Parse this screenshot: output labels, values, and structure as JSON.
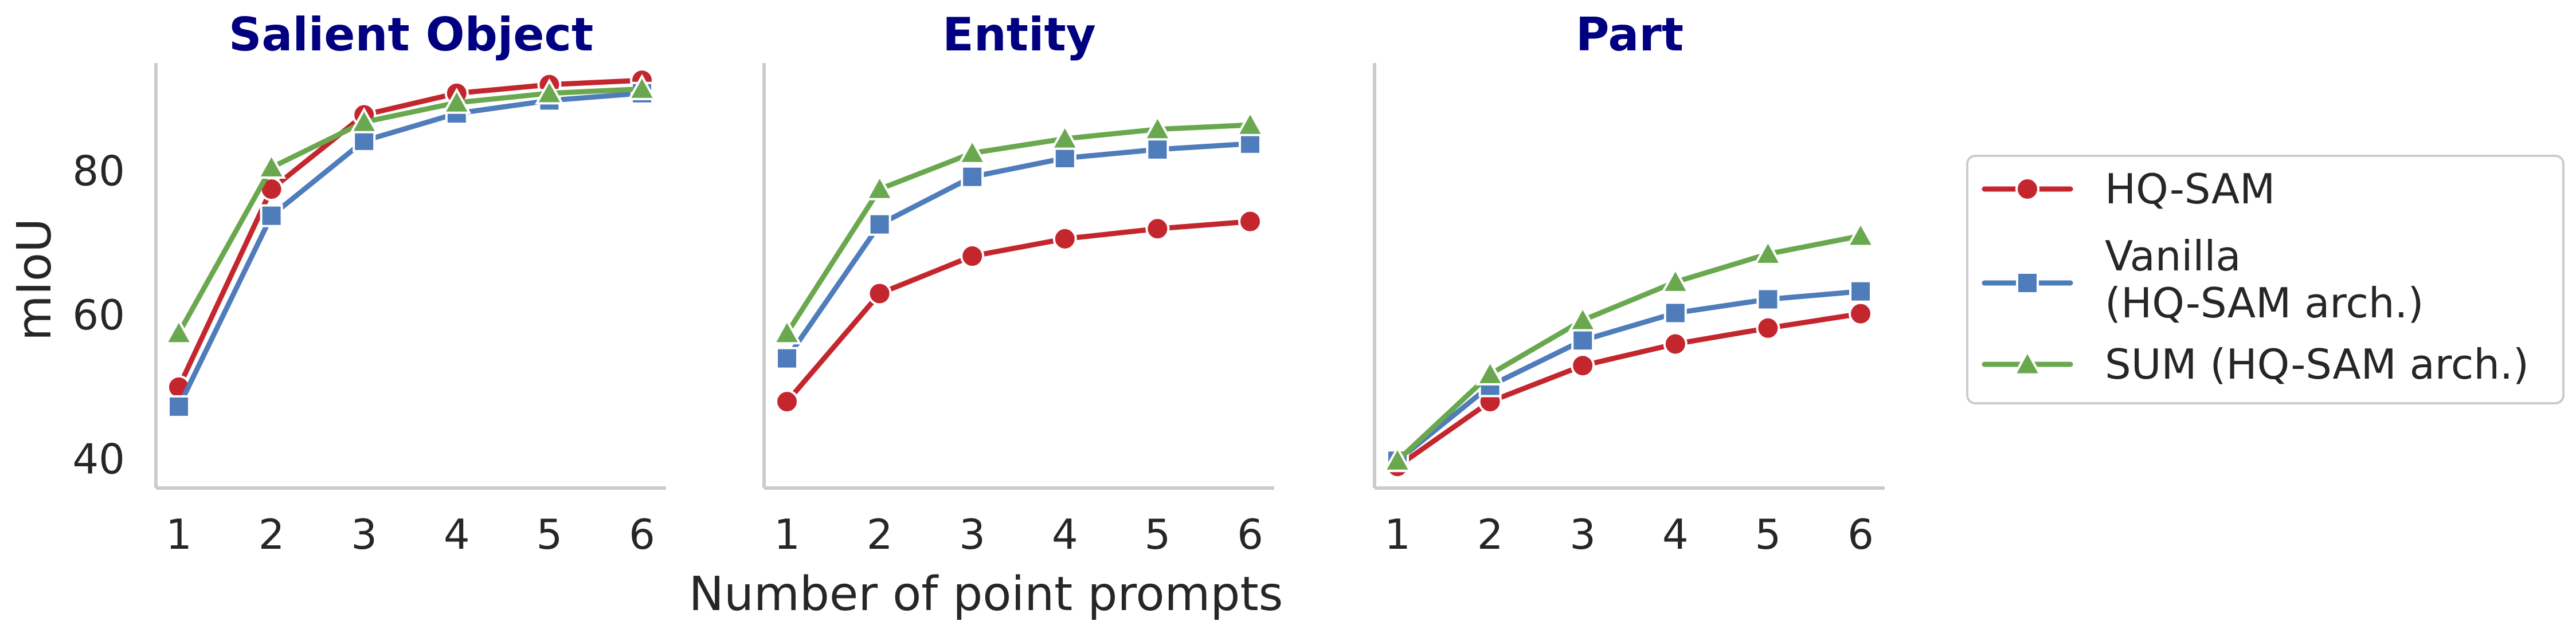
{
  "chart_data": {
    "type": "line",
    "xlabel": "Number of point prompts",
    "ylabel": "mIoU",
    "x": [
      1,
      2,
      3,
      4,
      5,
      6
    ],
    "ylim": [
      36,
      95
    ],
    "yticks": [
      40,
      60,
      80
    ],
    "grid": false,
    "legend_position": "right",
    "colors": {
      "title": "#000080",
      "axis": "#cccccc",
      "text": "#262626"
    },
    "legend": [
      {
        "lines": [
          "HQ-SAM"
        ],
        "color": "#c4262e",
        "marker": "circle"
      },
      {
        "lines": [
          "Vanilla",
          "(HQ-SAM arch.)"
        ],
        "color": "#4f7cba",
        "marker": "square"
      },
      {
        "lines": [
          "SUM (HQ-SAM arch.)"
        ],
        "color": "#6aa84f",
        "marker": "triangle"
      }
    ],
    "panels": [
      {
        "title": "Salient Object",
        "series": [
          {
            "name": "HQ-SAM",
            "color": "#c4262e",
            "marker": "circle",
            "values": [
              50.0,
              77.5,
              87.8,
              90.8,
              92.0,
              92.6
            ]
          },
          {
            "name": "Vanilla (HQ-SAM arch.)",
            "color": "#4f7cba",
            "marker": "square",
            "values": [
              47.3,
              73.8,
              84.2,
              88.0,
              89.8,
              90.8
            ]
          },
          {
            "name": "SUM (HQ-SAM arch.)",
            "color": "#6aa84f",
            "marker": "triangle",
            "values": [
              57.5,
              80.5,
              86.8,
              89.5,
              90.8,
              91.4
            ]
          }
        ]
      },
      {
        "title": "Entity",
        "series": [
          {
            "name": "HQ-SAM",
            "color": "#c4262e",
            "marker": "circle",
            "values": [
              48.0,
              63.0,
              68.2,
              70.6,
              72.0,
              73.0
            ]
          },
          {
            "name": "Vanilla (HQ-SAM arch.)",
            "color": "#4f7cba",
            "marker": "square",
            "values": [
              54.0,
              72.6,
              79.2,
              81.8,
              83.0,
              83.8
            ]
          },
          {
            "name": "SUM (HQ-SAM arch.)",
            "color": "#6aa84f",
            "marker": "triangle",
            "values": [
              57.5,
              77.5,
              82.5,
              84.5,
              85.8,
              86.4
            ]
          }
        ]
      },
      {
        "title": "Part",
        "series": [
          {
            "name": "HQ-SAM",
            "color": "#c4262e",
            "marker": "circle",
            "values": [
              39.0,
              48.0,
              53.0,
              56.0,
              58.2,
              60.2
            ]
          },
          {
            "name": "Vanilla (HQ-SAM arch.)",
            "color": "#4f7cba",
            "marker": "square",
            "values": [
              39.8,
              50.2,
              56.5,
              60.3,
              62.2,
              63.3
            ]
          },
          {
            "name": "SUM (HQ-SAM arch.)",
            "color": "#6aa84f",
            "marker": "triangle",
            "values": [
              39.8,
              51.8,
              59.3,
              64.6,
              68.5,
              71.0
            ]
          }
        ]
      }
    ]
  }
}
